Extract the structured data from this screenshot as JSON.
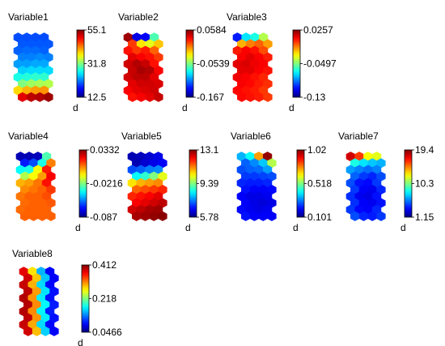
{
  "chart_data": [
    {
      "type": "heatmap",
      "title": "Variable1",
      "colorbar": {
        "max_label": "55.1",
        "mid_label": "31.8",
        "min_label": "12.5",
        "unit": "d"
      },
      "values_normalized": [
        [
          0.2,
          0.2,
          0.2,
          0.2
        ],
        [
          0.21,
          0.21,
          0.21,
          0.21
        ],
        [
          0.22,
          0.23,
          0.23,
          0.22
        ],
        [
          0.25,
          0.25,
          0.26,
          0.25
        ],
        [
          0.28,
          0.28,
          0.29,
          0.29
        ],
        [
          0.33,
          0.34,
          0.34,
          0.34
        ],
        [
          0.4,
          0.41,
          0.42,
          0.42
        ],
        [
          0.5,
          0.53,
          0.54,
          0.55
        ],
        [
          0.66,
          0.7,
          0.72,
          0.73
        ],
        [
          0.9,
          0.94,
          0.95,
          0.97
        ]
      ]
    },
    {
      "type": "heatmap",
      "title": "Variable2",
      "colorbar": {
        "max_label": "0.0584",
        "mid_label": "-0.0539",
        "min_label": "-0.167",
        "unit": "d"
      },
      "values_normalized": [
        [
          0.97,
          0.1,
          0.12,
          0.45
        ],
        [
          0.82,
          0.65,
          0.6,
          0.68
        ],
        [
          0.86,
          0.82,
          0.85,
          0.78
        ],
        [
          0.9,
          0.88,
          0.86,
          0.82
        ],
        [
          0.92,
          0.95,
          0.93,
          0.86
        ],
        [
          0.93,
          0.96,
          0.95,
          0.88
        ],
        [
          0.92,
          0.94,
          0.94,
          0.9
        ],
        [
          0.9,
          0.92,
          0.92,
          0.91
        ],
        [
          0.88,
          0.9,
          0.91,
          0.92
        ],
        [
          0.86,
          0.88,
          0.9,
          0.93
        ]
      ]
    },
    {
      "type": "heatmap",
      "title": "Variable3",
      "colorbar": {
        "max_label": "0.0257",
        "mid_label": "-0.0497",
        "min_label": "-0.13",
        "unit": "d"
      },
      "values_normalized": [
        [
          0.15,
          0.35,
          0.4,
          0.55
        ],
        [
          0.7,
          0.75,
          0.78,
          0.72
        ],
        [
          0.85,
          0.88,
          0.86,
          0.8
        ],
        [
          0.88,
          0.9,
          0.88,
          0.85
        ],
        [
          0.9,
          0.91,
          0.89,
          0.88
        ],
        [
          0.9,
          0.9,
          0.88,
          0.86
        ],
        [
          0.89,
          0.88,
          0.86,
          0.84
        ],
        [
          0.88,
          0.87,
          0.85,
          0.83
        ],
        [
          0.87,
          0.86,
          0.85,
          0.82
        ],
        [
          0.87,
          0.86,
          0.85,
          0.82
        ]
      ]
    },
    {
      "type": "heatmap",
      "title": "Variable4",
      "colorbar": {
        "max_label": "0.0332",
        "mid_label": "-0.0216",
        "min_label": "-0.087",
        "unit": "d"
      },
      "values_normalized": [
        [
          0.05,
          0.05,
          0.06,
          0.45
        ],
        [
          0.15,
          0.2,
          0.4,
          0.75
        ],
        [
          0.38,
          0.4,
          0.62,
          0.85
        ],
        [
          0.55,
          0.62,
          0.72,
          0.88
        ],
        [
          0.7,
          0.72,
          0.76,
          0.86
        ],
        [
          0.74,
          0.76,
          0.78,
          0.82
        ],
        [
          0.76,
          0.78,
          0.78,
          0.8
        ],
        [
          0.77,
          0.78,
          0.78,
          0.79
        ],
        [
          0.77,
          0.78,
          0.78,
          0.78
        ],
        [
          0.78,
          0.78,
          0.78,
          0.78
        ]
      ]
    },
    {
      "type": "heatmap",
      "title": "Variable5",
      "colorbar": {
        "max_label": "13.1",
        "mid_label": "9.39",
        "min_label": "5.78",
        "unit": "d"
      },
      "values_normalized": [
        [
          0.05,
          0.06,
          0.08,
          0.1
        ],
        [
          0.05,
          0.08,
          0.1,
          0.12
        ],
        [
          0.2,
          0.22,
          0.25,
          0.26
        ],
        [
          0.38,
          0.42,
          0.5,
          0.6
        ],
        [
          0.65,
          0.7,
          0.72,
          0.74
        ],
        [
          0.78,
          0.8,
          0.82,
          0.84
        ],
        [
          0.84,
          0.86,
          0.88,
          0.9
        ],
        [
          0.88,
          0.9,
          0.92,
          0.94
        ],
        [
          0.92,
          0.94,
          0.96,
          0.97
        ],
        [
          0.96,
          0.97,
          0.98,
          0.99
        ]
      ]
    },
    {
      "type": "heatmap",
      "title": "Variable6",
      "colorbar": {
        "max_label": "1.02",
        "mid_label": "0.518",
        "min_label": "0.101",
        "unit": "d"
      },
      "values_normalized": [
        [
          0.3,
          0.38,
          0.72,
          0.98
        ],
        [
          0.22,
          0.26,
          0.32,
          0.55
        ],
        [
          0.2,
          0.22,
          0.23,
          0.28
        ],
        [
          0.18,
          0.18,
          0.19,
          0.2
        ],
        [
          0.16,
          0.15,
          0.15,
          0.16
        ],
        [
          0.14,
          0.12,
          0.12,
          0.13
        ],
        [
          0.12,
          0.1,
          0.1,
          0.11
        ],
        [
          0.12,
          0.1,
          0.09,
          0.1
        ],
        [
          0.13,
          0.11,
          0.1,
          0.11
        ],
        [
          0.14,
          0.12,
          0.12,
          0.12
        ]
      ]
    },
    {
      "type": "heatmap",
      "title": "Variable7",
      "colorbar": {
        "max_label": "19.4",
        "mid_label": "10.3",
        "min_label": "1.15",
        "unit": "d"
      },
      "values_normalized": [
        [
          0.92,
          0.82,
          0.62,
          0.6
        ],
        [
          0.4,
          0.35,
          0.32,
          0.3
        ],
        [
          0.28,
          0.25,
          0.23,
          0.25
        ],
        [
          0.22,
          0.18,
          0.16,
          0.2
        ],
        [
          0.2,
          0.14,
          0.13,
          0.18
        ],
        [
          0.18,
          0.12,
          0.11,
          0.16
        ],
        [
          0.17,
          0.11,
          0.1,
          0.14
        ],
        [
          0.17,
          0.12,
          0.11,
          0.14
        ],
        [
          0.18,
          0.13,
          0.12,
          0.16
        ],
        [
          0.2,
          0.16,
          0.15,
          0.18
        ]
      ]
    },
    {
      "type": "heatmap",
      "title": "Variable8",
      "colorbar": {
        "max_label": "0.412",
        "mid_label": "0.218",
        "min_label": "0.0466",
        "unit": "d"
      },
      "values_normalized": [
        [
          0.9,
          0.65,
          0.3,
          0.12
        ],
        [
          0.92,
          0.68,
          0.32,
          0.12
        ],
        [
          0.93,
          0.7,
          0.34,
          0.13
        ],
        [
          0.94,
          0.72,
          0.35,
          0.14
        ],
        [
          0.95,
          0.73,
          0.36,
          0.14
        ],
        [
          0.95,
          0.74,
          0.37,
          0.15
        ],
        [
          0.95,
          0.74,
          0.37,
          0.15
        ],
        [
          0.94,
          0.73,
          0.36,
          0.14
        ],
        [
          0.93,
          0.71,
          0.34,
          0.13
        ],
        [
          0.92,
          0.69,
          0.33,
          0.12
        ]
      ]
    }
  ]
}
